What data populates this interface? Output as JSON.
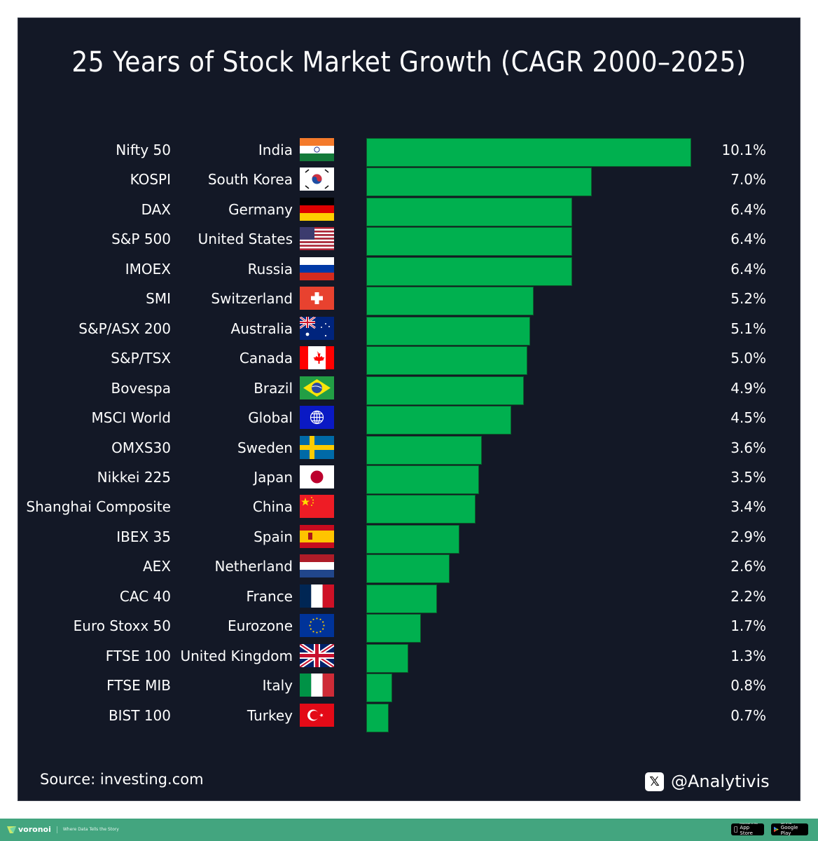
{
  "title": "25 Years of Stock Market Growth (CAGR 2000–2025)",
  "source": "Source: investing.com",
  "handle": "@Analytivis",
  "x_logo_icon": "𝕏",
  "footer": {
    "brand": "voronoi",
    "tagline": "Where Data Tells the Story",
    "app_store": {
      "small": "Download on the",
      "big": "App Store"
    },
    "google_play": {
      "small": "GET IT ON",
      "big": "Google Play"
    }
  },
  "colors": {
    "background": "#131826",
    "bar": "#00b04f",
    "footer": "#43a57f",
    "text": "#ffffff"
  },
  "chart_data": {
    "type": "bar",
    "orientation": "horizontal",
    "title": "25 Years of Stock Market Growth (CAGR 2000–2025)",
    "xlabel": "",
    "ylabel": "",
    "unit": "%",
    "xlim": [
      0,
      10.1
    ],
    "grid": false,
    "legend": "none",
    "rows": [
      {
        "index": "Nifty 50",
        "country": "India",
        "flag": "india-flag",
        "value": 10.1,
        "label": "10.1%"
      },
      {
        "index": "KOSPI",
        "country": "South Korea",
        "flag": "south-korea-flag",
        "value": 7.0,
        "label": "7.0%"
      },
      {
        "index": "DAX",
        "country": "Germany",
        "flag": "germany-flag",
        "value": 6.4,
        "label": "6.4%"
      },
      {
        "index": "S&P 500",
        "country": "United States",
        "flag": "united-states-flag",
        "value": 6.4,
        "label": "6.4%"
      },
      {
        "index": "IMOEX",
        "country": "Russia",
        "flag": "russia-flag",
        "value": 6.4,
        "label": "6.4%"
      },
      {
        "index": "SMI",
        "country": "Switzerland",
        "flag": "switzerland-flag",
        "value": 5.2,
        "label": "5.2%"
      },
      {
        "index": "S&P/ASX 200",
        "country": "Australia",
        "flag": "australia-flag",
        "value": 5.1,
        "label": "5.1%"
      },
      {
        "index": "S&P/TSX",
        "country": "Canada",
        "flag": "canada-flag",
        "value": 5.0,
        "label": "5.0%"
      },
      {
        "index": "Bovespa",
        "country": "Brazil",
        "flag": "brazil-flag",
        "value": 4.9,
        "label": "4.9%"
      },
      {
        "index": "MSCI World",
        "country": "Global",
        "flag": "globe-flag",
        "value": 4.5,
        "label": "4.5%"
      },
      {
        "index": "OMXS30",
        "country": "Sweden",
        "flag": "sweden-flag",
        "value": 3.6,
        "label": "3.6%"
      },
      {
        "index": "Nikkei 225",
        "country": "Japan",
        "flag": "japan-flag",
        "value": 3.5,
        "label": "3.5%"
      },
      {
        "index": "Shanghai Composite",
        "country": "China",
        "flag": "china-flag",
        "value": 3.4,
        "label": "3.4%"
      },
      {
        "index": "IBEX 35",
        "country": "Spain",
        "flag": "spain-flag",
        "value": 2.9,
        "label": "2.9%"
      },
      {
        "index": "AEX",
        "country": "Netherland",
        "flag": "netherlands-flag",
        "value": 2.6,
        "label": "2.6%"
      },
      {
        "index": "CAC 40",
        "country": "France",
        "flag": "france-flag",
        "value": 2.2,
        "label": "2.2%"
      },
      {
        "index": "Euro Stoxx 50",
        "country": "Eurozone",
        "flag": "eu-flag",
        "value": 1.7,
        "label": "1.7%"
      },
      {
        "index": "FTSE 100",
        "country": "United Kingdom",
        "flag": "united-kingdom-flag",
        "value": 1.3,
        "label": "1.3%"
      },
      {
        "index": "FTSE MIB",
        "country": "Italy",
        "flag": "italy-flag",
        "value": 0.8,
        "label": "0.8%"
      },
      {
        "index": "BIST 100",
        "country": "Turkey",
        "flag": "turkey-flag",
        "value": 0.7,
        "label": "0.7%"
      }
    ]
  }
}
